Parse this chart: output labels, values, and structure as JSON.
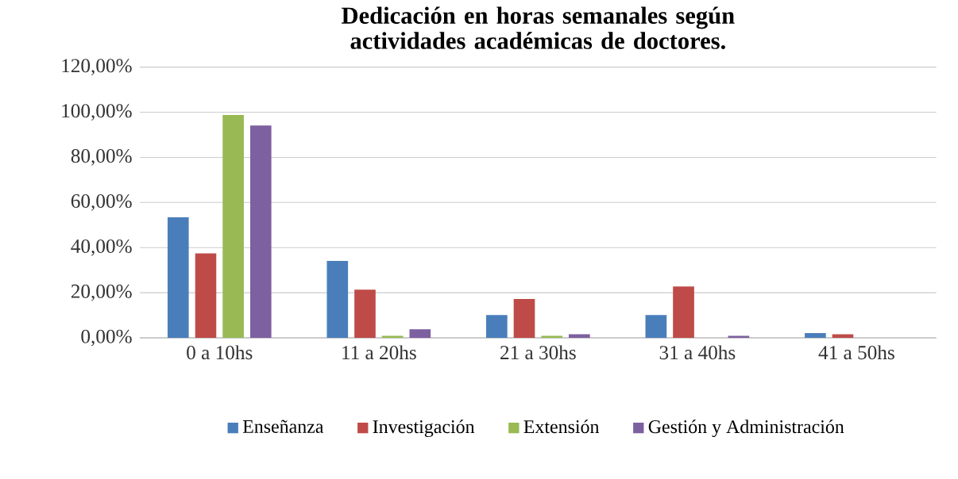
{
  "chart_data": {
    "type": "bar",
    "title": "Dedicación en horas semanales según actividades académicas de doctores.",
    "categories": [
      "0 a 10hs",
      "11 a 20hs",
      "21 a 30hs",
      "31 a 40hs",
      "41 a 50hs"
    ],
    "series": [
      {
        "name": "Enseñanza",
        "color": "#4a7ebb",
        "values": [
          53.4,
          34.1,
          10.1,
          10.1,
          2.1
        ]
      },
      {
        "name": "Investigación",
        "color": "#be4b48",
        "values": [
          37.4,
          21.4,
          17.2,
          22.8,
          1.6
        ]
      },
      {
        "name": "Extensión",
        "color": "#98b954",
        "values": [
          98.8,
          0.9,
          0.9,
          0,
          0
        ]
      },
      {
        "name": "Gestión y Administración",
        "color": "#7d60a0",
        "values": [
          94.1,
          3.8,
          1.6,
          0.9,
          0
        ]
      }
    ],
    "ylim": [
      0,
      120
    ],
    "yticks": [
      {
        "value": 0,
        "label": "0,00%"
      },
      {
        "value": 20,
        "label": "20,00%"
      },
      {
        "value": 40,
        "label": "40,00%"
      },
      {
        "value": 60,
        "label": "60,00%"
      },
      {
        "value": 80,
        "label": "80,00%"
      },
      {
        "value": 100,
        "label": "100,00%"
      },
      {
        "value": 120,
        "label": "120,00%"
      }
    ],
    "grid": "y",
    "legend": "bottom"
  }
}
